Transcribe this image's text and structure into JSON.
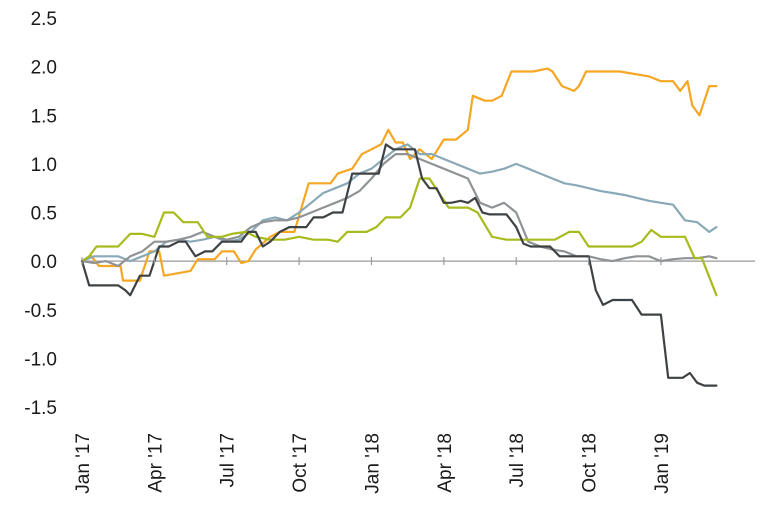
{
  "chart_data": {
    "type": "line",
    "title": "",
    "xlabel": "",
    "ylabel": "",
    "ylim": [
      -1.5,
      2.5
    ],
    "yticks": [
      -1.5,
      -1.0,
      -0.5,
      0.0,
      0.5,
      1.0,
      1.5,
      2.0,
      2.5
    ],
    "ytick_labels": [
      "-1.5",
      "-1.0",
      "-0.5",
      "0.0",
      "0.5",
      "1.0",
      "1.5",
      "2.0",
      "2.5"
    ],
    "xlim": [
      0,
      27.9
    ],
    "xticks": [
      0,
      3,
      6,
      9,
      12,
      15,
      18,
      21,
      24
    ],
    "xtick_labels": [
      "Jan '17",
      "Apr '17",
      "Jul '17",
      "Oct '17",
      "Jan '18",
      "Apr '18",
      "Jul '18",
      "Oct '18",
      "Jan '19"
    ],
    "grid": false,
    "series": [
      {
        "color": "#f5a623",
        "x": [
          0,
          0.4,
          0.7,
          1.2,
          1.6,
          1.7,
          2.0,
          2.4,
          2.8,
          3.2,
          3.4,
          4.5,
          4.8,
          5.5,
          5.8,
          6.3,
          6.6,
          6.9,
          7.2,
          7.8,
          8.2,
          8.8,
          9.4,
          9.8,
          10.3,
          10.6,
          11.2,
          11.6,
          12.0,
          12.4,
          12.7,
          13.0,
          13.3,
          13.6,
          14.0,
          14.5,
          15.0,
          15.5,
          16.0,
          16.2,
          16.7,
          17.0,
          17.4,
          17.8,
          18.3,
          18.7,
          19.3,
          19.5,
          19.9,
          20.4,
          20.6,
          20.9,
          21.2,
          21.7,
          22.3,
          23.5,
          24.0,
          24.5,
          24.8,
          25.1,
          25.3,
          25.6,
          26.0,
          26.3
        ],
        "y": [
          0.0,
          0.05,
          -0.05,
          -0.05,
          -0.05,
          -0.2,
          -0.2,
          -0.2,
          0.1,
          0.1,
          -0.15,
          -0.1,
          0.02,
          0.02,
          0.1,
          0.1,
          -0.02,
          0.0,
          0.12,
          0.25,
          0.3,
          0.3,
          0.8,
          0.8,
          0.8,
          0.9,
          0.95,
          1.1,
          1.15,
          1.2,
          1.35,
          1.22,
          1.22,
          1.05,
          1.15,
          1.05,
          1.25,
          1.25,
          1.35,
          1.7,
          1.65,
          1.65,
          1.7,
          1.95,
          1.95,
          1.95,
          1.98,
          1.95,
          1.8,
          1.75,
          1.8,
          1.95,
          1.95,
          1.95,
          1.95,
          1.9,
          1.85,
          1.85,
          1.75,
          1.85,
          1.6,
          1.5,
          1.8,
          1.8
        ]
      },
      {
        "color": "#8aa9b8",
        "x": [
          0,
          0.5,
          1.0,
          1.5,
          2.0,
          2.5,
          3.0,
          3.5,
          4.0,
          4.5,
          5.0,
          5.5,
          6.0,
          6.5,
          7.0,
          7.5,
          8.0,
          8.5,
          9.0,
          9.5,
          10.0,
          10.5,
          11.0,
          11.5,
          12.0,
          12.5,
          13.0,
          13.5,
          14.0,
          14.5,
          15.0,
          15.5,
          16.0,
          16.5,
          17.0,
          17.5,
          18.0,
          18.5,
          19.0,
          19.5,
          20.0,
          20.5,
          21.0,
          21.5,
          22.0,
          22.5,
          23.0,
          23.5,
          24.0,
          24.5,
          25.0,
          25.5,
          26.0,
          26.3
        ],
        "y": [
          0.0,
          0.05,
          0.05,
          0.05,
          0.0,
          0.05,
          0.1,
          0.2,
          0.22,
          0.2,
          0.22,
          0.25,
          0.2,
          0.22,
          0.3,
          0.42,
          0.45,
          0.42,
          0.5,
          0.6,
          0.7,
          0.75,
          0.8,
          0.9,
          0.95,
          1.05,
          1.15,
          1.2,
          1.1,
          1.1,
          1.05,
          1.0,
          0.95,
          0.9,
          0.92,
          0.95,
          1.0,
          0.95,
          0.9,
          0.85,
          0.8,
          0.78,
          0.75,
          0.72,
          0.7,
          0.68,
          0.65,
          0.62,
          0.6,
          0.58,
          0.42,
          0.4,
          0.3,
          0.35
        ]
      },
      {
        "color": "#8f9396",
        "x": [
          0,
          0.5,
          1.0,
          1.5,
          2.0,
          2.5,
          3.0,
          3.5,
          4.0,
          4.5,
          5.0,
          5.5,
          6.0,
          6.5,
          7.0,
          7.5,
          8.0,
          8.5,
          9.0,
          9.5,
          10.0,
          10.5,
          11.0,
          11.5,
          12.0,
          12.5,
          13.0,
          13.5,
          14.0,
          14.5,
          15.0,
          15.5,
          16.0,
          16.5,
          17.0,
          17.5,
          18.0,
          18.5,
          19.0,
          19.5,
          20.0,
          20.5,
          21.0,
          21.5,
          22.0,
          22.5,
          23.0,
          23.5,
          24.0,
          24.5,
          25.0,
          25.5,
          26.0,
          26.3
        ],
        "y": [
          0.0,
          -0.02,
          0.0,
          -0.05,
          0.05,
          0.1,
          0.2,
          0.2,
          0.22,
          0.25,
          0.3,
          0.25,
          0.22,
          0.25,
          0.35,
          0.4,
          0.42,
          0.42,
          0.45,
          0.5,
          0.55,
          0.6,
          0.65,
          0.72,
          0.85,
          1.0,
          1.1,
          1.1,
          1.05,
          1.0,
          0.95,
          0.9,
          0.85,
          0.6,
          0.55,
          0.6,
          0.5,
          0.2,
          0.15,
          0.12,
          0.1,
          0.05,
          0.05,
          0.02,
          0.0,
          0.03,
          0.05,
          0.05,
          0.0,
          0.02,
          0.03,
          0.03,
          0.05,
          0.03
        ]
      },
      {
        "color": "#a8bb1d",
        "x": [
          0,
          0.3,
          0.6,
          1.2,
          1.5,
          2.0,
          2.5,
          3.0,
          3.4,
          3.8,
          4.2,
          4.8,
          5.2,
          5.8,
          6.2,
          6.8,
          7.2,
          7.8,
          8.4,
          9.0,
          9.6,
          10.2,
          10.6,
          11.0,
          11.4,
          11.8,
          12.2,
          12.6,
          13.2,
          13.6,
          14.0,
          14.4,
          14.8,
          15.2,
          15.6,
          16.0,
          16.4,
          17.0,
          17.6,
          18.0,
          18.6,
          19.0,
          19.6,
          20.2,
          20.6,
          21.0,
          21.4,
          21.8,
          22.4,
          22.8,
          23.2,
          23.6,
          24.0,
          24.6,
          25.0,
          25.4,
          25.7,
          26.3
        ],
        "y": [
          0.0,
          0.05,
          0.15,
          0.15,
          0.15,
          0.28,
          0.28,
          0.25,
          0.5,
          0.5,
          0.4,
          0.4,
          0.25,
          0.25,
          0.28,
          0.3,
          0.25,
          0.22,
          0.22,
          0.25,
          0.22,
          0.22,
          0.2,
          0.3,
          0.3,
          0.3,
          0.35,
          0.45,
          0.45,
          0.55,
          0.85,
          0.85,
          0.7,
          0.55,
          0.55,
          0.55,
          0.5,
          0.25,
          0.22,
          0.22,
          0.22,
          0.22,
          0.22,
          0.3,
          0.3,
          0.15,
          0.15,
          0.15,
          0.15,
          0.15,
          0.2,
          0.32,
          0.25,
          0.25,
          0.25,
          0.03,
          0.03,
          -0.35
        ]
      },
      {
        "color": "#3f4244",
        "x": [
          0,
          0.3,
          0.7,
          1.1,
          1.5,
          1.8,
          2.0,
          2.4,
          2.8,
          3.2,
          3.6,
          4.0,
          4.3,
          4.7,
          5.1,
          5.4,
          5.8,
          6.2,
          6.6,
          6.9,
          7.2,
          7.5,
          7.8,
          8.2,
          8.6,
          9.0,
          9.3,
          9.6,
          10.0,
          10.4,
          10.8,
          11.2,
          11.5,
          11.9,
          12.3,
          12.6,
          12.9,
          13.2,
          13.5,
          13.8,
          14.1,
          14.4,
          14.7,
          15.0,
          15.3,
          15.7,
          16.0,
          16.3,
          16.6,
          16.9,
          17.2,
          17.6,
          18.0,
          18.3,
          18.6,
          19.0,
          19.4,
          19.8,
          20.1,
          20.4,
          20.7,
          21.0,
          21.3,
          21.6,
          22.0,
          22.4,
          22.8,
          23.2,
          23.6,
          24.0,
          24.3,
          24.6,
          24.9,
          25.2,
          25.5,
          25.8,
          26.1,
          26.3
        ],
        "y": [
          0.0,
          -0.25,
          -0.25,
          -0.25,
          -0.25,
          -0.3,
          -0.35,
          -0.15,
          -0.15,
          0.15,
          0.15,
          0.2,
          0.2,
          0.05,
          0.1,
          0.1,
          0.2,
          0.2,
          0.2,
          0.3,
          0.3,
          0.15,
          0.2,
          0.3,
          0.35,
          0.35,
          0.35,
          0.45,
          0.45,
          0.5,
          0.5,
          0.9,
          0.9,
          0.9,
          0.9,
          1.2,
          1.15,
          1.15,
          1.15,
          1.15,
          0.85,
          0.75,
          0.75,
          0.6,
          0.6,
          0.62,
          0.6,
          0.65,
          0.5,
          0.48,
          0.48,
          0.48,
          0.35,
          0.18,
          0.15,
          0.15,
          0.15,
          0.05,
          0.05,
          0.05,
          0.05,
          0.05,
          -0.3,
          -0.45,
          -0.4,
          -0.4,
          -0.4,
          -0.55,
          -0.55,
          -0.55,
          -1.2,
          -1.2,
          -1.2,
          -1.15,
          -1.25,
          -1.28,
          -1.28,
          -1.28
        ]
      }
    ]
  }
}
